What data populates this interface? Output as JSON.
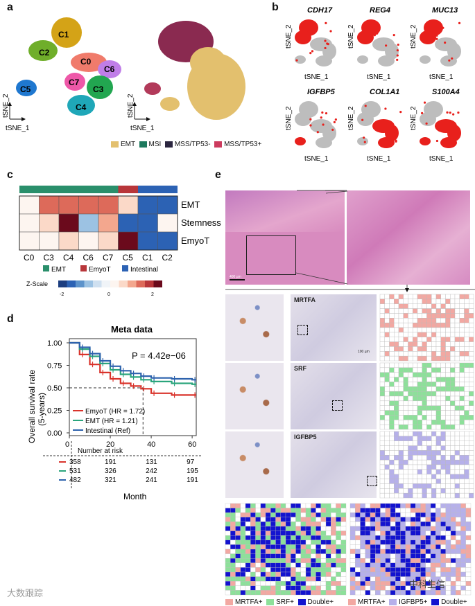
{
  "panels": {
    "a": "a",
    "b": "b",
    "c": "c",
    "d": "d",
    "e": "e"
  },
  "colors": {
    "emt": "#e3c06e",
    "msi": "#1e7a5e",
    "mss_neg": "#2b2640",
    "mss_pos": "#cc3b5e",
    "c0": "#f07b6b",
    "c1": "#d4a317",
    "c2": "#6fae2a",
    "c3": "#22a650",
    "c4": "#1fa7b8",
    "c5": "#1f78d0",
    "c6": "#c07ee8",
    "c7": "#ee58a8",
    "heat_emt": "#2a8f6b",
    "heat_emyot": "#b8363a",
    "heat_int": "#2c62b4",
    "he": "#d78cc0",
    "ihc": "#e8e4ef",
    "mrtfa": "#f2a8a2",
    "srf": "#8de09a",
    "igfbp5": "#b6b0ea",
    "double": "#1313cf"
  },
  "panel_a": {
    "clusters": [
      "C0",
      "C1",
      "C2",
      "C3",
      "C4",
      "C5",
      "C6",
      "C7"
    ],
    "axis_y": "tSNE_2",
    "axis_x": "tSNE_1",
    "legend": [
      "EMT",
      "MSI",
      "MSS/TP53-",
      "MSS/TP53+"
    ]
  },
  "panel_b": {
    "genes": [
      "CDH17",
      "REG4",
      "MUC13",
      "IGFBP5",
      "COL1A1",
      "S100A4"
    ],
    "axis_y": "tSNE_2",
    "axis_x": "tSNE_1"
  },
  "panel_c": {
    "columns": [
      "C0",
      "C3",
      "C4",
      "C6",
      "C7",
      "C5",
      "C1",
      "C2"
    ],
    "rows": [
      "EMT",
      "Stemness",
      "EmyoT"
    ],
    "legend": [
      "EMT",
      "EmyoT",
      "Intestinal"
    ],
    "zscale_label": "Z-Scale",
    "zscale_ticks": [
      "-2",
      "0",
      "2"
    ]
  },
  "panel_d": {
    "title": "Meta data",
    "ylabel": "Overall survival rate (5-years)",
    "xlabel": "Month",
    "pvalue": "P = 4.42e−06",
    "legend": [
      "EmyoT (HR = 1.72)",
      "EMT (HR = 1.21)",
      "Intestinal (Ref)"
    ],
    "risk_title": "Number at risk",
    "risk_table": [
      [
        "358",
        "191",
        "131",
        "97"
      ],
      [
        "531",
        "326",
        "242",
        "195"
      ],
      [
        "482",
        "321",
        "241",
        "191"
      ]
    ]
  },
  "chart_data": {
    "type": "line",
    "title": "Meta data",
    "xlabel": "Month",
    "ylabel": "Overall survival rate (5-years)",
    "xlim": [
      0,
      62
    ],
    "ylim": [
      0,
      1
    ],
    "x_ticks": [
      0,
      20,
      40,
      60
    ],
    "y_ticks": [
      0.0,
      0.25,
      0.5,
      0.75,
      1.0
    ],
    "series": [
      {
        "name": "EmyoT (HR = 1.72)",
        "color": "#d9332b",
        "x": [
          0,
          5,
          10,
          15,
          20,
          25,
          30,
          35,
          40,
          50,
          60
        ],
        "values": [
          1.0,
          0.87,
          0.76,
          0.67,
          0.6,
          0.55,
          0.52,
          0.49,
          0.44,
          0.42,
          0.42
        ]
      },
      {
        "name": "EMT (HR = 1.21)",
        "color": "#2aa57c",
        "x": [
          0,
          5,
          10,
          15,
          20,
          25,
          30,
          35,
          40,
          50,
          60
        ],
        "values": [
          1.0,
          0.93,
          0.85,
          0.77,
          0.7,
          0.65,
          0.62,
          0.59,
          0.57,
          0.55,
          0.54
        ]
      },
      {
        "name": "Intestinal (Ref)",
        "color": "#2d62ad",
        "x": [
          0,
          5,
          10,
          15,
          20,
          25,
          30,
          35,
          40,
          50,
          60
        ],
        "values": [
          1.0,
          0.95,
          0.88,
          0.8,
          0.74,
          0.69,
          0.66,
          0.63,
          0.61,
          0.6,
          0.59
        ]
      }
    ],
    "annotations": [
      "P = 4.42e−06"
    ]
  },
  "panel_e": {
    "ihc_labels": [
      "MRTFA",
      "SRF",
      "IGFBP5"
    ],
    "he_scale": "400 µm",
    "ihc_scale": "100 µm",
    "legend_left": [
      "MRTFA+",
      "SRF+",
      "Double+"
    ],
    "legend_right": [
      "MRTFA+",
      "IGFBP5+",
      "Double+"
    ]
  },
  "watermarks": [
    "大数跟踪",
    "中科生信"
  ]
}
